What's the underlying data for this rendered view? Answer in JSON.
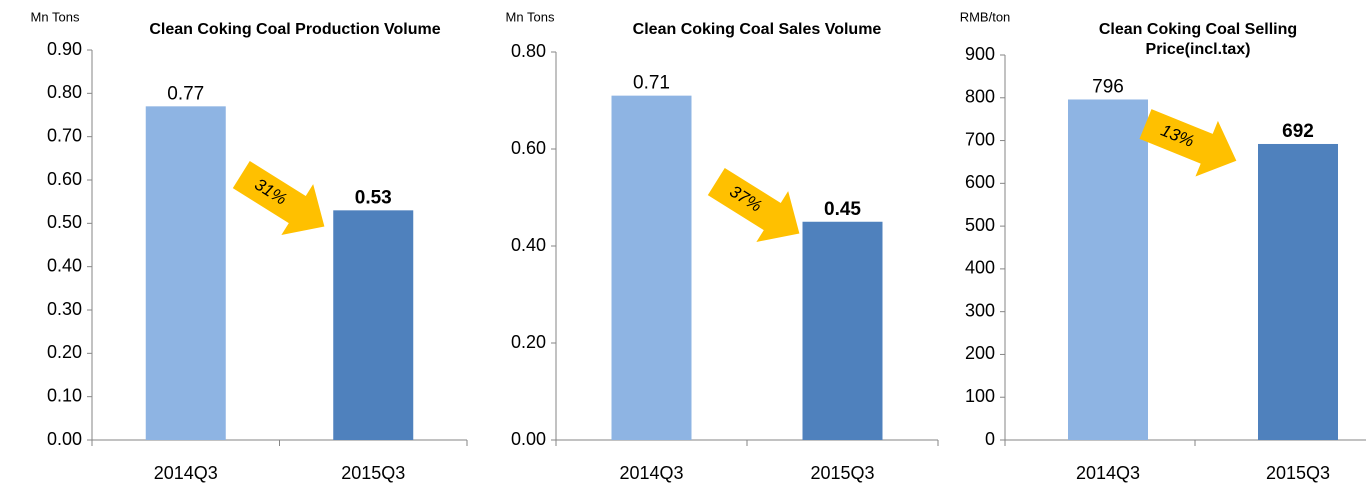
{
  "chart_data": [
    {
      "type": "bar",
      "title": "Clean Coking Coal Production Volume",
      "y_unit": "Mn Tons",
      "categories": [
        "2014Q3",
        "2015Q3"
      ],
      "values": [
        0.77,
        0.53
      ],
      "colors": [
        "#8eb4e3",
        "#4f81bd"
      ],
      "ylim": [
        0,
        0.9
      ],
      "yticks": [
        {
          "value": 0,
          "label": "0.00"
        },
        {
          "value": 0.1,
          "label": "0.10"
        },
        {
          "value": 0.2,
          "label": "0.20"
        },
        {
          "value": 0.3,
          "label": "0.30"
        },
        {
          "value": 0.4,
          "label": "0.40"
        },
        {
          "value": 0.5,
          "label": "0.50"
        },
        {
          "value": 0.6,
          "label": "0.60"
        },
        {
          "value": 0.7,
          "label": "0.70"
        },
        {
          "value": 0.8,
          "label": "0.80"
        },
        {
          "value": 0.9,
          "label": "0.90"
        }
      ],
      "annotation": "31%"
    },
    {
      "type": "bar",
      "title": "Clean Coking Coal Sales Volume",
      "y_unit": "Mn Tons",
      "categories": [
        "2014Q3",
        "2015Q3"
      ],
      "values": [
        0.71,
        0.45
      ],
      "colors": [
        "#8eb4e3",
        "#4f81bd"
      ],
      "ylim": [
        0,
        0.8
      ],
      "yticks": [
        {
          "value": 0,
          "label": "0.00"
        },
        {
          "value": 0.2,
          "label": "0.20"
        },
        {
          "value": 0.4,
          "label": "0.40"
        },
        {
          "value": 0.6,
          "label": "0.60"
        },
        {
          "value": 0.8,
          "label": "0.80"
        }
      ],
      "annotation": "37%"
    },
    {
      "type": "bar",
      "title": "Clean Coking Coal Selling Price(incl.tax)",
      "y_unit": "RMB/ton",
      "categories": [
        "2014Q3",
        "2015Q3"
      ],
      "values": [
        796,
        692
      ],
      "colors": [
        "#8eb4e3",
        "#4f81bd"
      ],
      "ylim": [
        0,
        900
      ],
      "yticks": [
        0,
        100,
        200,
        300,
        400,
        500,
        600,
        700,
        800,
        900
      ],
      "annotation": "13%"
    }
  ]
}
